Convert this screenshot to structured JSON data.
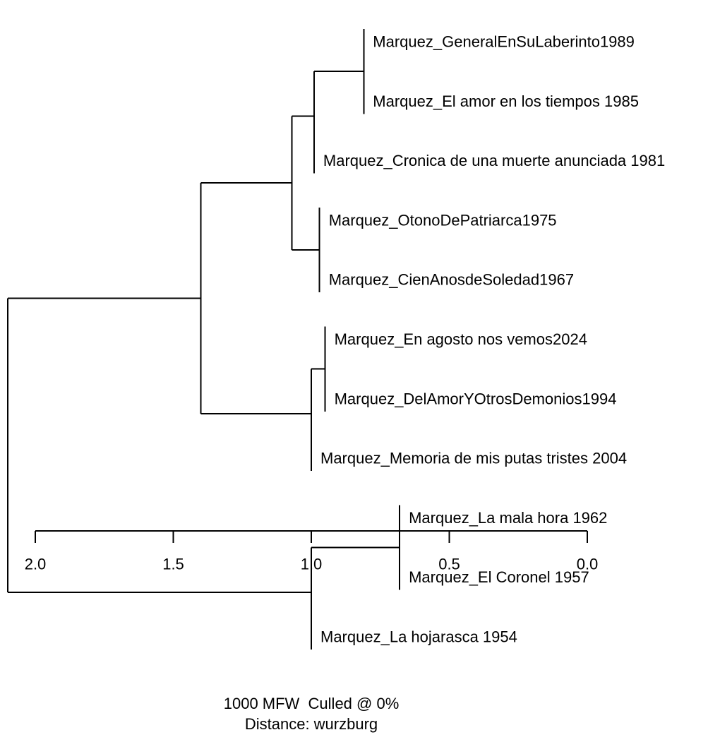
{
  "dendrogram": {
    "tree": {
      "height": 2.1,
      "children": [
        {
          "height": 1.4,
          "children": [
            {
              "height": 1.07,
              "children": [
                {
                  "height": 0.99,
                  "children": [
                    {
                      "height": 0.81,
                      "children": [
                        {
                          "label": "Marquez_GeneralEnSuLaberinto1989"
                        },
                        {
                          "label": "Marquez_El amor en los tiempos 1985"
                        }
                      ]
                    },
                    {
                      "label": "Marquez_Cronica de una muerte anunciada 1981"
                    }
                  ]
                },
                {
                  "height": 0.97,
                  "children": [
                    {
                      "label": "Marquez_OtonoDePatriarca1975"
                    },
                    {
                      "label": "Marquez_CienAnosdeSoledad1967"
                    }
                  ]
                }
              ]
            },
            {
              "height": 1.0,
              "children": [
                {
                  "height": 0.95,
                  "children": [
                    {
                      "label": "Marquez_En agosto nos vemos2024"
                    },
                    {
                      "label": "Marquez_DelAmorYOtrosDemonios1994"
                    }
                  ]
                },
                {
                  "label": "Marquez_Memoria de mis putas tristes 2004"
                }
              ]
            }
          ]
        },
        {
          "height": 1.0,
          "children": [
            {
              "height": 0.68,
              "children": [
                {
                  "label": "Marquez_La mala hora 1962"
                },
                {
                  "label": "Marquez_El Coronel 1957"
                }
              ]
            },
            {
              "label": "Marquez_La hojarasca 1954"
            }
          ]
        }
      ]
    },
    "leaf_height": 0.95,
    "axis": {
      "direction": "reversed",
      "ticks": [
        2.0,
        1.5,
        1.0,
        0.5,
        0.0
      ],
      "tick_labels": [
        "2.0",
        "1.5",
        "1.0",
        "0.5",
        "0.0"
      ]
    },
    "caption": {
      "line1": "1000 MFW  Culled @ 0%",
      "line2": "Distance: wurzburg"
    }
  }
}
